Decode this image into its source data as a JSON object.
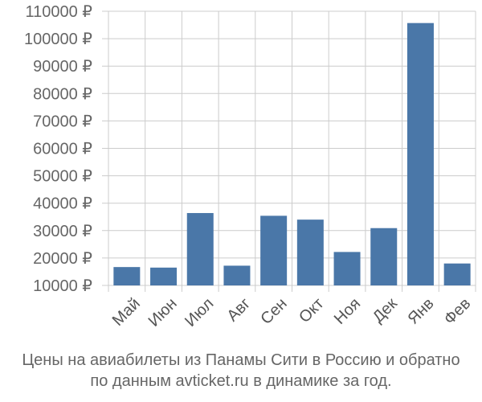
{
  "chart_data": {
    "type": "bar",
    "categories": [
      "Май",
      "Июн",
      "Июл",
      "Авг",
      "Сен",
      "Окт",
      "Ноя",
      "Дек",
      "Янв",
      "Фев"
    ],
    "values": [
      16700,
      16500,
      36400,
      17200,
      35400,
      34000,
      22200,
      30900,
      105700,
      18000
    ],
    "ylim": [
      10000,
      110000
    ],
    "yticks": [
      10000,
      20000,
      30000,
      40000,
      50000,
      60000,
      70000,
      80000,
      90000,
      100000,
      110000
    ],
    "y_tick_suffix": " ₽",
    "bar_color": "#4a77a8",
    "grid": true
  },
  "caption": {
    "line1": "Цены на авиабилеты из Панамы Сити в Россию и обратно",
    "line2": "по данным avticket.ru в динамике за год."
  }
}
